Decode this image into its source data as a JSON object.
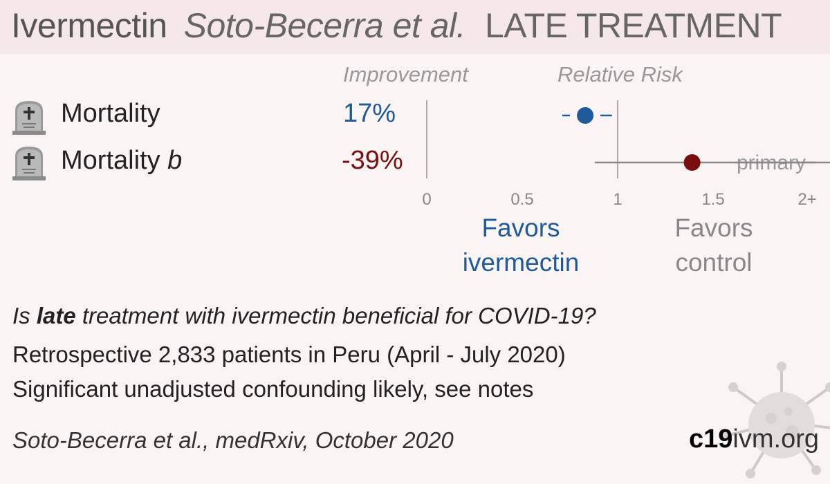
{
  "header": {
    "drug": "Ivermectin",
    "author": "Soto-Becerra et al.",
    "stage": "LATE TREATMENT"
  },
  "columns": {
    "improvement": "Improvement",
    "relative_risk": "Relative Risk"
  },
  "favors": {
    "left_line1": "Favors",
    "left_line2": "ivermectin",
    "right_line1": "Favors",
    "right_line2": "control"
  },
  "info": {
    "q_prefix": "Is ",
    "q_bold": "late",
    "q_suffix": " treatment with ivermectin beneficial for COVID-19?",
    "line2": "Retrospective 2,833 patients in Peru (April - July 2020)",
    "line3": "Significant unadjusted confounding likely, see notes"
  },
  "citation": "Soto-Becerra et al., medRxiv, October 2020",
  "brand": {
    "bold": "c19",
    "rest": "ivm.org"
  },
  "icons": [
    "tombstone-icon",
    "virus-icon"
  ],
  "colors": {
    "favorable": "#1f5a9b",
    "unfavorable": "#7a0d0d",
    "axis": "#999999"
  },
  "chart_data": {
    "type": "forest",
    "x_ticks": [
      "0",
      "0.5",
      "1",
      "1.5",
      "2+"
    ],
    "x_tick_values": [
      0,
      0.5,
      1,
      1.5,
      2
    ],
    "xlim": [
      0,
      2
    ],
    "reference_line": 1,
    "rows": [
      {
        "label": "Mortality",
        "label_suffix": "",
        "improvement": "17%",
        "rr": 0.83,
        "ci": [
          0.71,
          0.97
        ],
        "direction": "favorable",
        "note": ""
      },
      {
        "label": "Mortality ",
        "label_suffix": "b",
        "improvement": "-39%",
        "rr": 1.39,
        "ci": [
          0.88,
          2.0
        ],
        "direction": "unfavorable",
        "note": "primary"
      }
    ]
  }
}
